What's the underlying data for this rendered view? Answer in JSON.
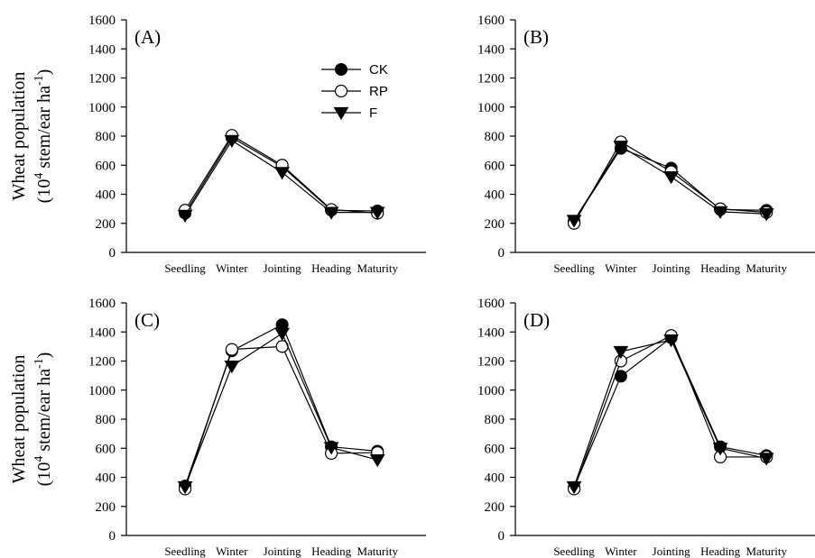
{
  "ylabel_line1": "Wheat population",
  "ylabel_line2_prefix": "(10",
  "ylabel_line2_sup1": "4",
  "ylabel_line2_mid": " stem/ear ha",
  "ylabel_line2_sup2": "-1",
  "ylabel_line2_suffix": ")",
  "legend": [
    {
      "name": "CK",
      "marker": "filled-circle"
    },
    {
      "name": "RP",
      "marker": "open-circle"
    },
    {
      "name": "F",
      "marker": "filled-triangle-down"
    }
  ],
  "chart_data": [
    {
      "type": "line",
      "panel": "(A)",
      "categories": [
        "Seedling",
        "Winter",
        "Jointing",
        "Heading",
        "Maturity"
      ],
      "ylim": [
        0,
        1600
      ],
      "yticks": [
        0,
        200,
        400,
        600,
        800,
        1000,
        1200,
        1400,
        1600
      ],
      "series": [
        {
          "name": "CK",
          "values": [
            270,
            790,
            590,
            290,
            285
          ]
        },
        {
          "name": "RP",
          "values": [
            290,
            805,
            600,
            295,
            270
          ]
        },
        {
          "name": "F",
          "values": [
            255,
            770,
            550,
            275,
            275
          ]
        }
      ]
    },
    {
      "type": "line",
      "panel": "(B)",
      "categories": [
        "Seedling",
        "Winter",
        "Jointing",
        "Heading",
        "Maturity"
      ],
      "ylim": [
        0,
        1600
      ],
      "yticks": [
        0,
        200,
        400,
        600,
        800,
        1000,
        1200,
        1400,
        1600
      ],
      "series": [
        {
          "name": "CK",
          "values": [
            215,
            715,
            580,
            295,
            290
          ]
        },
        {
          "name": "RP",
          "values": [
            200,
            760,
            555,
            300,
            275
          ]
        },
        {
          "name": "F",
          "values": [
            220,
            730,
            520,
            280,
            265
          ]
        }
      ]
    },
    {
      "type": "line",
      "panel": "(C)",
      "categories": [
        "Seedling",
        "Winter",
        "Jointing",
        "Heading",
        "Maturity"
      ],
      "ylim": [
        0,
        1600
      ],
      "yticks": [
        0,
        200,
        400,
        600,
        800,
        1000,
        1200,
        1400,
        1600
      ],
      "series": [
        {
          "name": "CK",
          "values": [
            340,
            1270,
            1450,
            610,
            580
          ]
        },
        {
          "name": "RP",
          "values": [
            320,
            1280,
            1300,
            565,
            570
          ]
        },
        {
          "name": "F",
          "values": [
            335,
            1165,
            1390,
            605,
            520
          ]
        }
      ]
    },
    {
      "type": "line",
      "panel": "(D)",
      "categories": [
        "Seedling",
        "Winter",
        "Jointing",
        "Heading",
        "Maturity"
      ],
      "ylim": [
        0,
        1600
      ],
      "yticks": [
        0,
        200,
        400,
        600,
        800,
        1000,
        1200,
        1400,
        1600
      ],
      "series": [
        {
          "name": "CK",
          "values": [
            330,
            1095,
            1360,
            610,
            550
          ]
        },
        {
          "name": "RP",
          "values": [
            320,
            1200,
            1375,
            540,
            540
          ]
        },
        {
          "name": "F",
          "values": [
            335,
            1265,
            1345,
            600,
            530
          ]
        }
      ]
    }
  ]
}
